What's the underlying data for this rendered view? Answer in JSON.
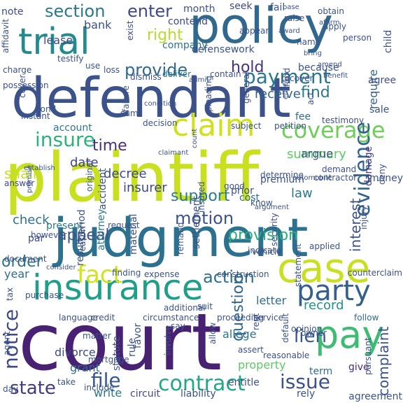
{
  "colormap": [
    "#440154",
    "#3b528b",
    "#21918c",
    "#5ec962",
    "#c8e020",
    "#fde725"
  ],
  "words": [
    {
      "text": "plaintiff",
      "color": "#c8e020"
    },
    {
      "text": "court",
      "color": "#482173"
    },
    {
      "text": "judgment",
      "color": "#2c728e"
    },
    {
      "text": "defendant",
      "color": "#3b528b"
    },
    {
      "text": "policy",
      "color": "#31688e"
    },
    {
      "text": "insurance",
      "color": "#1f9e89"
    },
    {
      "text": "trial",
      "color": "#238a8d"
    },
    {
      "text": "case",
      "color": "#c8e020"
    },
    {
      "text": "pay",
      "color": "#3fbc73"
    },
    {
      "text": "claim",
      "color": "#d0e11c"
    },
    {
      "text": "party",
      "color": "#35608d"
    },
    {
      "text": "coverage",
      "color": "#6ece58"
    },
    {
      "text": "payment",
      "color": "#2a788e"
    },
    {
      "text": "contract",
      "color": "#22a884"
    },
    {
      "text": "motion",
      "color": "#3b528b"
    },
    {
      "text": "action",
      "color": "#2e6f8e"
    },
    {
      "text": "lien",
      "color": "#38588c"
    },
    {
      "text": "insure",
      "color": "#2db27d"
    },
    {
      "text": "evidence",
      "color": "#33638d"
    },
    {
      "text": "notice",
      "color": "#3e4989"
    },
    {
      "text": "fact",
      "color": "#d2e21b"
    },
    {
      "text": "issue",
      "color": "#3b528b"
    },
    {
      "text": "file",
      "color": "#38588c"
    },
    {
      "text": "state",
      "color": "#443983"
    },
    {
      "text": "provide",
      "color": "#31688e"
    },
    {
      "text": "section",
      "color": "#2a788e"
    },
    {
      "text": "enter",
      "color": "#3e4989"
    },
    {
      "text": "time",
      "color": "#472d7b"
    },
    {
      "text": "order",
      "color": "#2c728e"
    },
    {
      "text": "appeal",
      "color": "#3b528b"
    },
    {
      "text": "provision",
      "color": "#29af7f"
    },
    {
      "text": "hold",
      "color": "#46327e"
    },
    {
      "text": "right",
      "color": "#b5de2b"
    },
    {
      "text": "support",
      "color": "#287d8e"
    },
    {
      "text": "record",
      "color": "#21918c"
    },
    {
      "text": "question",
      "color": "#31688e"
    },
    {
      "text": "interest",
      "color": "#3b528b"
    },
    {
      "text": "date",
      "color": "#414487"
    },
    {
      "text": "decree",
      "color": "#3e4989"
    },
    {
      "text": "complaint",
      "color": "#3b528b"
    },
    {
      "text": "summary",
      "color": "#5ec962"
    },
    {
      "text": "receive",
      "color": "#33638d"
    },
    {
      "text": "find",
      "color": "#2a788e"
    },
    {
      "text": "check",
      "color": "#2c728e"
    },
    {
      "text": "law",
      "color": "#2a788e"
    },
    {
      "text": "allege",
      "color": "#2c728e"
    },
    {
      "text": "grant",
      "color": "#2f6c8e"
    },
    {
      "text": "divorce",
      "color": "#3e4989"
    },
    {
      "text": "shall",
      "color": "#c2df23"
    },
    {
      "text": "insurer",
      "color": "#3e4989"
    },
    {
      "text": "bank",
      "color": "#3b528b"
    },
    {
      "text": "require",
      "color": "#33638d"
    },
    {
      "text": "argue",
      "color": "#3b528b"
    },
    {
      "text": "letter",
      "color": "#2f6c8e"
    },
    {
      "text": "property",
      "color": "#5ec962"
    },
    {
      "text": "year",
      "color": "#2f6c8e"
    },
    {
      "text": "present",
      "color": "#2a788e"
    },
    {
      "text": "par",
      "color": "#3e4989"
    },
    {
      "text": "term",
      "color": "#2f6c8e"
    },
    {
      "text": "give",
      "color": "#472d7b"
    },
    {
      "text": "write",
      "color": "#2a788e"
    },
    {
      "text": "lease",
      "color": "#3e4989"
    },
    {
      "text": "note",
      "color": "#3e4989"
    },
    {
      "text": "company",
      "color": "#2c728e"
    },
    {
      "text": "settlement",
      "color": "#3b528b"
    },
    {
      "text": "damage",
      "color": "#443983"
    },
    {
      "text": "cost",
      "color": "#2f6c8e"
    },
    {
      "text": "premium",
      "color": "#3b528b"
    },
    {
      "text": "account",
      "color": "#2a788e"
    },
    {
      "text": "accident",
      "color": "#3b528b"
    },
    {
      "text": "attorney",
      "color": "#2a788e"
    },
    {
      "text": "period",
      "color": "#3b528b"
    },
    {
      "text": "contend",
      "color": "#3e4989"
    },
    {
      "text": "month",
      "color": "#3b528b"
    },
    {
      "text": "seek",
      "color": "#3e4989"
    },
    {
      "text": "fail",
      "color": "#3b528b"
    },
    {
      "text": "defensework",
      "color": "#3b528b"
    },
    {
      "text": "deliver",
      "color": "#2a788e"
    },
    {
      "text": "money",
      "color": "#3b528b"
    },
    {
      "text": "prior",
      "color": "#3b528b"
    },
    {
      "text": "agree",
      "color": "#3b528b"
    },
    {
      "text": "sale",
      "color": "#3b528b"
    },
    {
      "text": "fee",
      "color": "#2f6c8e"
    },
    {
      "text": "injury",
      "color": "#3b528b"
    },
    {
      "text": "determine",
      "color": "#3b528b"
    },
    {
      "text": "contractor",
      "color": "#3b528b"
    },
    {
      "text": "deny",
      "color": "#3b528b"
    },
    {
      "text": "rely",
      "color": "#3b528b"
    },
    {
      "text": "agreement",
      "color": "#3b528b"
    },
    {
      "text": "liability",
      "color": "#3b528b"
    },
    {
      "text": "entitle",
      "color": "#3b528b"
    },
    {
      "text": "circuit",
      "color": "#3e4989"
    },
    {
      "text": "include",
      "color": "#3b528b"
    },
    {
      "text": "day",
      "color": "#3b528b"
    },
    {
      "text": "answer",
      "color": "#3e4989"
    },
    {
      "text": "follow",
      "color": "#2f6c8e"
    },
    {
      "text": "statute",
      "color": "#3b528b"
    },
    {
      "text": "rule",
      "color": "#3b528b"
    },
    {
      "text": "favor",
      "color": "#3b528b"
    },
    {
      "text": "opinion",
      "color": "#3b528b"
    },
    {
      "text": "say",
      "color": "#3b528b"
    },
    {
      "text": "result",
      "color": "#3b528b"
    },
    {
      "text": "material",
      "color": "#3b528b"
    },
    {
      "text": "child",
      "color": "#3b528b"
    },
    {
      "text": "affidavit",
      "color": "#3b528b"
    },
    {
      "text": "testify",
      "color": "#3b528b"
    },
    {
      "text": "charge",
      "color": "#3b528b"
    },
    {
      "text": "possession",
      "color": "#3b528b"
    },
    {
      "text": "bond",
      "color": "#3b528b"
    },
    {
      "text": "instant",
      "color": "#3b528b"
    },
    {
      "text": "use",
      "color": "#3b528b"
    },
    {
      "text": "loss",
      "color": "#3b528b"
    },
    {
      "text": "dismiss",
      "color": "#3b528b"
    },
    {
      "text": "because",
      "color": "#3b528b"
    },
    {
      "text": "person",
      "color": "#3b528b"
    },
    {
      "text": "apply",
      "color": "#3b528b"
    },
    {
      "text": "obtain",
      "color": "#3b528b"
    },
    {
      "text": "raise",
      "color": "#3b528b"
    },
    {
      "text": "appear",
      "color": "#3b528b"
    },
    {
      "text": "award",
      "color": "#3b528b"
    },
    {
      "text": "affirm",
      "color": "#3b528b"
    },
    {
      "text": "base",
      "color": "#3b528b"
    },
    {
      "text": "name",
      "color": "#3b528b"
    },
    {
      "text": "bring",
      "color": "#3b528b"
    },
    {
      "text": "recover",
      "color": "#3b528b"
    },
    {
      "text": "benefit",
      "color": "#3b528b"
    },
    {
      "text": "amend",
      "color": "#3b528b"
    },
    {
      "text": "fund",
      "color": "#3b528b"
    },
    {
      "text": "act",
      "color": "#3b528b"
    },
    {
      "text": "testimony",
      "color": "#3b528b"
    },
    {
      "text": "effect",
      "color": "#3b528b"
    },
    {
      "text": "general",
      "color": "#3b528b"
    },
    {
      "text": "contain",
      "color": "#3b528b"
    },
    {
      "text": "admit",
      "color": "#3b528b"
    },
    {
      "text": "sum",
      "color": "#3b528b"
    },
    {
      "text": "cover",
      "color": "#3b528b"
    },
    {
      "text": "exist",
      "color": "#3b528b"
    },
    {
      "text": "condition",
      "color": "#3b528b"
    },
    {
      "text": "pleading",
      "color": "#3b528b"
    },
    {
      "text": "subject",
      "color": "#3b528b"
    },
    {
      "text": "petition",
      "color": "#3b528b"
    },
    {
      "text": "decision",
      "color": "#3b528b"
    },
    {
      "text": "failure",
      "color": "#3b528b"
    },
    {
      "text": "establish",
      "color": "#3b528b"
    },
    {
      "text": "good",
      "color": "#3b528b"
    },
    {
      "text": "demand",
      "color": "#3b528b"
    },
    {
      "text": "automobile",
      "color": "#3b528b"
    },
    {
      "text": "argument",
      "color": "#3b528b"
    },
    {
      "text": "know",
      "color": "#3b528b"
    },
    {
      "text": "insured",
      "color": "#3b528b"
    },
    {
      "text": "original",
      "color": "#3b528b"
    },
    {
      "text": "premise",
      "color": "#3b528b"
    },
    {
      "text": "request",
      "color": "#3b528b"
    },
    {
      "text": "indicate",
      "color": "#3b528b"
    },
    {
      "text": "applied",
      "color": "#3b528b"
    },
    {
      "text": "however",
      "color": "#3b528b"
    },
    {
      "text": "document",
      "color": "#3b528b"
    },
    {
      "text": "consider",
      "color": "#3b528b"
    },
    {
      "text": "reason",
      "color": "#3b528b"
    },
    {
      "text": "remand",
      "color": "#3b528b"
    },
    {
      "text": "vehicle",
      "color": "#3b528b"
    },
    {
      "text": "security",
      "color": "#3b528b"
    },
    {
      "text": "statement",
      "color": "#3b528b"
    },
    {
      "text": "finding",
      "color": "#3b528b"
    },
    {
      "text": "expense",
      "color": "#3b528b"
    },
    {
      "text": "construction",
      "color": "#3b528b"
    },
    {
      "text": "purchase",
      "color": "#3b528b"
    },
    {
      "text": "tax",
      "color": "#3b528b"
    },
    {
      "text": "circumstance",
      "color": "#3b528b"
    },
    {
      "text": "proceeding",
      "color": "#3b528b"
    },
    {
      "text": "service",
      "color": "#3b528b"
    },
    {
      "text": "language",
      "color": "#3b528b"
    },
    {
      "text": "credit",
      "color": "#3b528b"
    },
    {
      "text": "matter",
      "color": "#3b528b"
    },
    {
      "text": "assert",
      "color": "#3b528b"
    },
    {
      "text": "default",
      "color": "#3b528b"
    },
    {
      "text": "owner",
      "color": "#3b528b"
    },
    {
      "text": "take",
      "color": "#3b528b"
    },
    {
      "text": "mortgage",
      "color": "#3b528b"
    },
    {
      "text": "reasonable",
      "color": "#3b528b"
    },
    {
      "text": "agent",
      "color": "#3b528b"
    },
    {
      "text": "involve",
      "color": "#3b528b"
    },
    {
      "text": "allow",
      "color": "#3b528b"
    },
    {
      "text": "rent",
      "color": "#3b528b"
    },
    {
      "text": "counterclaim",
      "color": "#3b528b"
    },
    {
      "text": "pursuant",
      "color": "#3b528b"
    },
    {
      "text": "additional",
      "color": "#3b528b"
    },
    {
      "text": "suit",
      "color": "#3b528b"
    },
    {
      "text": "count",
      "color": "#3b528b"
    },
    {
      "text": "claimant",
      "color": "#3b528b"
    },
    {
      "text": "limit",
      "color": "#3b528b"
    },
    {
      "text": "cite",
      "color": "#3b528b"
    },
    {
      "text": "proceed",
      "color": "#3b528b"
    },
    {
      "text": "evident",
      "color": "#3b528b"
    }
  ]
}
